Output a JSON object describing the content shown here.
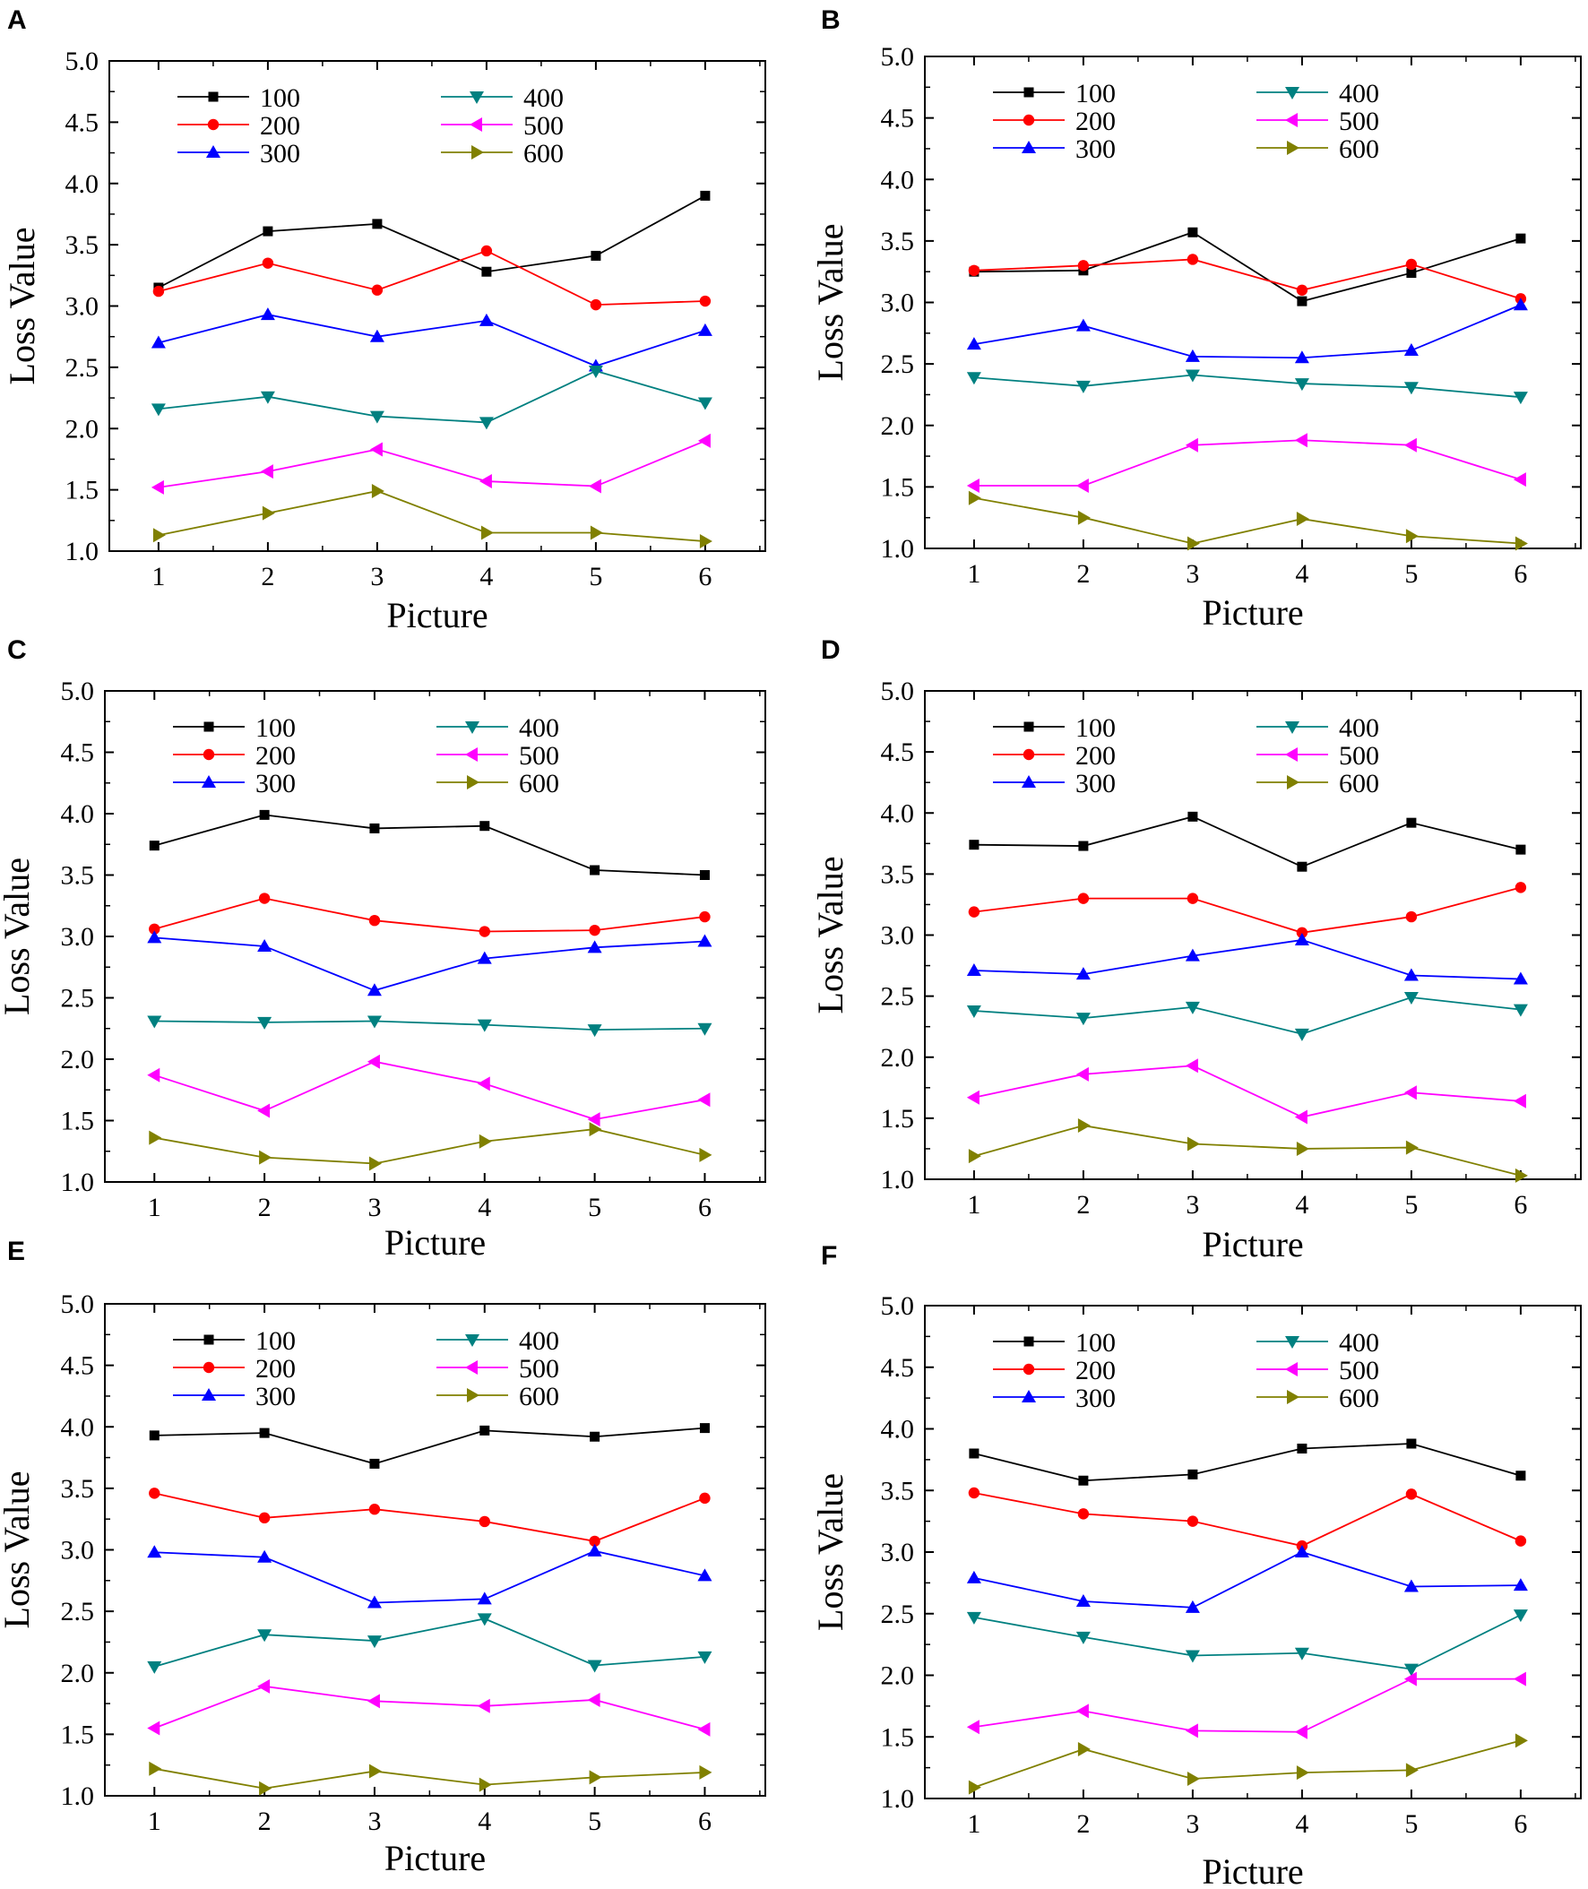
{
  "figure": {
    "legend_labels": [
      "100",
      "200",
      "300",
      "400",
      "500",
      "600"
    ],
    "series_colors": [
      "#000000",
      "#ff0000",
      "#0000ff",
      "#008080",
      "#ff00ff",
      "#808000"
    ],
    "series_markers": [
      "square",
      "circle",
      "triangle-up",
      "triangle-down",
      "triangle-left",
      "triangle-right"
    ]
  },
  "chart_data": [
    {
      "panel": "A",
      "type": "line",
      "xlabel": "Picture",
      "ylabel": "Loss Value",
      "x": [
        1,
        2,
        3,
        4,
        5,
        6
      ],
      "xticks": [
        "1",
        "2",
        "3",
        "4",
        "5",
        "6"
      ],
      "ylim": [
        1.0,
        5.0
      ],
      "yticks": [
        "1.0",
        "1.5",
        "2.0",
        "2.5",
        "3.0",
        "3.5",
        "4.0",
        "4.5",
        "5.0"
      ],
      "series": [
        {
          "name": "100",
          "values": [
            3.15,
            3.61,
            3.67,
            3.28,
            3.41,
            3.9
          ]
        },
        {
          "name": "200",
          "values": [
            3.12,
            3.35,
            3.13,
            3.45,
            3.01,
            3.04
          ]
        },
        {
          "name": "300",
          "values": [
            2.7,
            2.93,
            2.75,
            2.88,
            2.51,
            2.8
          ]
        },
        {
          "name": "400",
          "values": [
            2.16,
            2.26,
            2.1,
            2.05,
            2.47,
            2.21
          ]
        },
        {
          "name": "500",
          "values": [
            1.52,
            1.65,
            1.83,
            1.57,
            1.53,
            1.9
          ]
        },
        {
          "name": "600",
          "values": [
            1.13,
            1.31,
            1.49,
            1.15,
            1.15,
            1.08
          ]
        }
      ]
    },
    {
      "panel": "B",
      "type": "line",
      "xlabel": "Picture",
      "ylabel": "Loss Value",
      "x": [
        1,
        2,
        3,
        4,
        5,
        6
      ],
      "xticks": [
        "1",
        "2",
        "3",
        "4",
        "5",
        "6"
      ],
      "ylim": [
        1.0,
        5.0
      ],
      "yticks": [
        "1.0",
        "1.5",
        "2.0",
        "2.5",
        "3.0",
        "3.5",
        "4.0",
        "4.5",
        "5.0"
      ],
      "series": [
        {
          "name": "100",
          "values": [
            3.25,
            3.26,
            3.57,
            3.01,
            3.24,
            3.52
          ]
        },
        {
          "name": "200",
          "values": [
            3.26,
            3.3,
            3.35,
            3.1,
            3.31,
            3.03
          ]
        },
        {
          "name": "300",
          "values": [
            2.66,
            2.81,
            2.56,
            2.55,
            2.61,
            2.98
          ]
        },
        {
          "name": "400",
          "values": [
            2.39,
            2.32,
            2.41,
            2.34,
            2.31,
            2.23
          ]
        },
        {
          "name": "500",
          "values": [
            1.51,
            1.51,
            1.84,
            1.88,
            1.84,
            1.56
          ]
        },
        {
          "name": "600",
          "values": [
            1.41,
            1.25,
            1.04,
            1.24,
            1.1,
            1.04
          ]
        }
      ]
    },
    {
      "panel": "C",
      "type": "line",
      "xlabel": "Picture",
      "ylabel": "Loss Value",
      "x": [
        1,
        2,
        3,
        4,
        5,
        6
      ],
      "xticks": [
        "1",
        "2",
        "3",
        "4",
        "5",
        "6"
      ],
      "ylim": [
        1.0,
        5.0
      ],
      "yticks": [
        "1.0",
        "1.5",
        "2.0",
        "2.5",
        "3.0",
        "3.5",
        "4.0",
        "4.5",
        "5.0"
      ],
      "series": [
        {
          "name": "100",
          "values": [
            3.74,
            3.99,
            3.88,
            3.9,
            3.54,
            3.5
          ]
        },
        {
          "name": "200",
          "values": [
            3.06,
            3.31,
            3.13,
            3.04,
            3.05,
            3.16
          ]
        },
        {
          "name": "300",
          "values": [
            2.99,
            2.92,
            2.56,
            2.82,
            2.91,
            2.96
          ]
        },
        {
          "name": "400",
          "values": [
            2.31,
            2.3,
            2.31,
            2.28,
            2.24,
            2.25
          ]
        },
        {
          "name": "500",
          "values": [
            1.87,
            1.58,
            1.98,
            1.8,
            1.51,
            1.67
          ]
        },
        {
          "name": "600",
          "values": [
            1.36,
            1.2,
            1.15,
            1.33,
            1.43,
            1.22
          ]
        }
      ]
    },
    {
      "panel": "D",
      "type": "line",
      "xlabel": "Picture",
      "ylabel": "Loss Value",
      "x": [
        1,
        2,
        3,
        4,
        5,
        6
      ],
      "xticks": [
        "1",
        "2",
        "3",
        "4",
        "5",
        "6"
      ],
      "ylim": [
        1.0,
        5.0
      ],
      "yticks": [
        "1.0",
        "1.5",
        "2.0",
        "2.5",
        "3.0",
        "3.5",
        "4.0",
        "4.5",
        "5.0"
      ],
      "series": [
        {
          "name": "100",
          "values": [
            3.74,
            3.73,
            3.97,
            3.56,
            3.92,
            3.7
          ]
        },
        {
          "name": "200",
          "values": [
            3.19,
            3.3,
            3.3,
            3.02,
            3.15,
            3.39
          ]
        },
        {
          "name": "300",
          "values": [
            2.71,
            2.68,
            2.83,
            2.96,
            2.67,
            2.64
          ]
        },
        {
          "name": "400",
          "values": [
            2.38,
            2.32,
            2.41,
            2.19,
            2.49,
            2.39
          ]
        },
        {
          "name": "500",
          "values": [
            1.67,
            1.86,
            1.93,
            1.51,
            1.71,
            1.64
          ]
        },
        {
          "name": "600",
          "values": [
            1.19,
            1.44,
            1.29,
            1.25,
            1.26,
            1.03
          ]
        }
      ]
    },
    {
      "panel": "E",
      "type": "line",
      "xlabel": "Picture",
      "ylabel": "Loss Value",
      "x": [
        1,
        2,
        3,
        4,
        5,
        6
      ],
      "xticks": [
        "1",
        "2",
        "3",
        "4",
        "5",
        "6"
      ],
      "ylim": [
        1.0,
        5.0
      ],
      "yticks": [
        "1.0",
        "1.5",
        "2.0",
        "2.5",
        "3.0",
        "3.5",
        "4.0",
        "4.5",
        "5.0"
      ],
      "series": [
        {
          "name": "100",
          "values": [
            3.93,
            3.95,
            3.7,
            3.97,
            3.92,
            3.99
          ]
        },
        {
          "name": "200",
          "values": [
            3.46,
            3.26,
            3.33,
            3.23,
            3.07,
            3.42
          ]
        },
        {
          "name": "300",
          "values": [
            2.98,
            2.94,
            2.57,
            2.6,
            2.99,
            2.79
          ]
        },
        {
          "name": "400",
          "values": [
            2.05,
            2.31,
            2.26,
            2.44,
            2.06,
            2.13
          ]
        },
        {
          "name": "500",
          "values": [
            1.55,
            1.89,
            1.77,
            1.73,
            1.78,
            1.54
          ]
        },
        {
          "name": "600",
          "values": [
            1.22,
            1.06,
            1.2,
            1.09,
            1.15,
            1.19
          ]
        }
      ]
    },
    {
      "panel": "F",
      "type": "line",
      "xlabel": "Picture",
      "ylabel": "Loss Value",
      "x": [
        1,
        2,
        3,
        4,
        5,
        6
      ],
      "xticks": [
        "1",
        "2",
        "3",
        "4",
        "5",
        "6"
      ],
      "ylim": [
        1.0,
        5.0
      ],
      "yticks": [
        "1.0",
        "1.5",
        "2.0",
        "2.5",
        "3.0",
        "3.5",
        "4.0",
        "4.5",
        "5.0"
      ],
      "series": [
        {
          "name": "100",
          "values": [
            3.8,
            3.58,
            3.63,
            3.84,
            3.88,
            3.62
          ]
        },
        {
          "name": "200",
          "values": [
            3.48,
            3.31,
            3.25,
            3.05,
            3.47,
            3.09
          ]
        },
        {
          "name": "300",
          "values": [
            2.79,
            2.6,
            2.55,
            3.0,
            2.72,
            2.73
          ]
        },
        {
          "name": "400",
          "values": [
            2.47,
            2.31,
            2.16,
            2.18,
            2.05,
            2.49
          ]
        },
        {
          "name": "500",
          "values": [
            1.58,
            1.71,
            1.55,
            1.54,
            1.97,
            1.97
          ]
        },
        {
          "name": "600",
          "values": [
            1.09,
            1.4,
            1.16,
            1.21,
            1.23,
            1.47
          ]
        }
      ]
    }
  ]
}
